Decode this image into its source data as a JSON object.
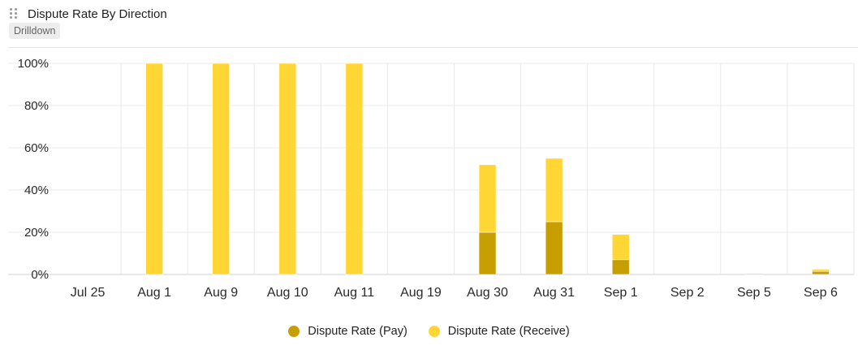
{
  "panel": {
    "title": "Dispute Rate By Direction",
    "drilldown_label": "Drilldown",
    "drag_icon": "drag-handle-icon"
  },
  "chart_data": {
    "type": "bar",
    "stacked": true,
    "title": "Dispute Rate By Direction",
    "categories": [
      "Jul 25",
      "Aug 1",
      "Aug 9",
      "Aug 10",
      "Aug 11",
      "Aug 19",
      "Aug 30",
      "Aug 31",
      "Sep 1",
      "Sep 2",
      "Sep 5",
      "Sep 6"
    ],
    "series": [
      {
        "name": "Dispute Rate (Pay)",
        "color": "#c79e00",
        "values": [
          0,
          0,
          0,
          0,
          0,
          0,
          20,
          25,
          7,
          0,
          0,
          1.5
        ]
      },
      {
        "name": "Dispute Rate (Receive)",
        "color": "#ffd633",
        "values": [
          0,
          100,
          100,
          100,
          100,
          0,
          32,
          30,
          12,
          0,
          0.5,
          1
        ]
      }
    ],
    "ylim": [
      0,
      100
    ],
    "yticks": [
      0,
      20,
      40,
      60,
      80,
      100
    ],
    "ytick_labels": [
      "0%",
      "20%",
      "40%",
      "60%",
      "80%",
      "100%"
    ],
    "grid": true,
    "legend_position": "bottom-center"
  }
}
